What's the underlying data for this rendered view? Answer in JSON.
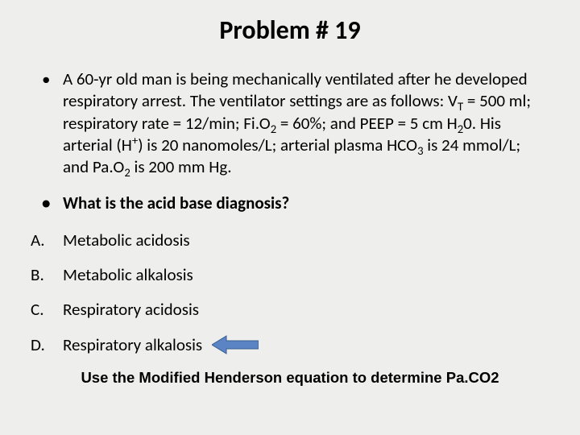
{
  "title": "Problem # 19",
  "scenario": {
    "prefix": "A 60-yr old man is being mechanically ventilated after he developed respiratory arrest. The ventilator settings are as follows: V",
    "vt_sub": "T",
    "vt_val": " = 500 ml; respiratory rate = 12/min; Fi.O",
    "fio2_sub": "2",
    "fio2_val": " = 60%; and PEEP = 5 cm H",
    "h2o_sub": "2",
    "h2o_rest": "0.  His arterial (H",
    "h_sup": "+",
    "h_rest": ") is 20 nanomoles/L; arterial plasma HCO",
    "hco3_sub": "3",
    "hco3_rest": " is 24 mmol/L; and Pa.O",
    "pao2_sub": "2",
    "pao2_rest": " is 200 mm Hg."
  },
  "question": "What is the acid base diagnosis?",
  "options": {
    "a": "Metabolic acidosis",
    "b": "Metabolic alkalosis",
    "c": "Respiratory acidosis",
    "d": "Respiratory alkalosis"
  },
  "arrow": {
    "fill": "#5b84c4",
    "stroke": "#3b5e91",
    "width": 58,
    "height": 24
  },
  "footer": "Use the Modified Henderson equation to determine Pa.CO2"
}
